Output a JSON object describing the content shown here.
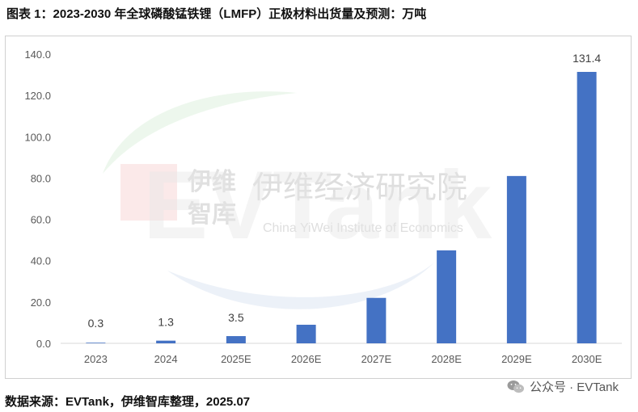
{
  "title": "图表 1：2023-2030 年全球磷酸锰铁锂（LMFP）正极材料出货量及预测：万吨",
  "source": "数据来源：EVTank，伊维智库整理，2025.07",
  "watermark": {
    "cn_short_top": "伊维",
    "cn_short_bottom": "智库",
    "cn_long": "伊维经济研究院",
    "en": "China YiWei Institute of Economics",
    "logo_text": "EVTank"
  },
  "wechat": {
    "label": "公众号 · EVTank",
    "icon": "wechat-icon"
  },
  "colors": {
    "bar": "#4472C4",
    "axis": "#d9d9d9"
  },
  "chart_data": {
    "type": "bar",
    "title": "",
    "xlabel": "",
    "ylabel": "",
    "categories": [
      "2023",
      "2024",
      "2025E",
      "2026E",
      "2027E",
      "2028E",
      "2029E",
      "2030E"
    ],
    "values": [
      0.3,
      1.3,
      3.5,
      9.0,
      22.0,
      45.0,
      81.0,
      131.4
    ],
    "data_labels": [
      "0.3",
      "1.3",
      "3.5",
      null,
      null,
      null,
      null,
      "131.4"
    ],
    "ylim": [
      0,
      140
    ],
    "yticks": [
      "0.0",
      "20.0",
      "40.0",
      "60.0",
      "80.0",
      "100.0",
      "120.0",
      "140.0"
    ],
    "grid": false,
    "legend": "none"
  }
}
